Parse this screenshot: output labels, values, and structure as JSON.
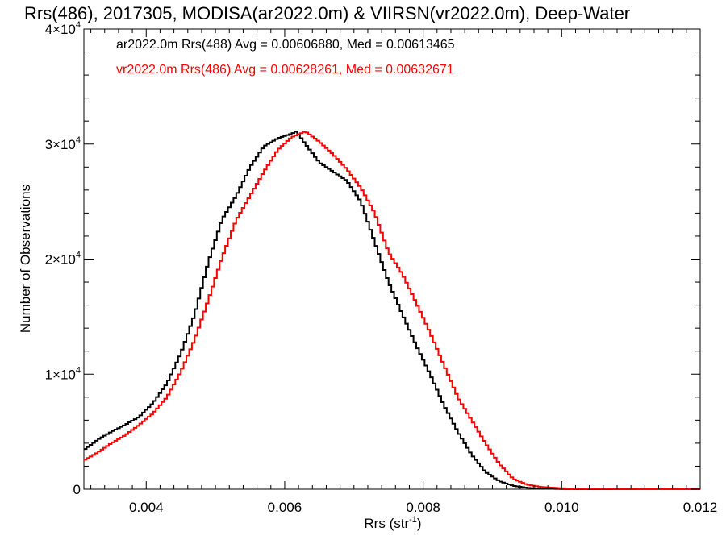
{
  "chart_data": {
    "type": "line",
    "title": "Rrs(486), 2017305, MODISA(ar2022.0m) & VIIRSN(vr2022.0m), Deep-Water",
    "xlabel_main": "Rrs (str",
    "xlabel_sup": "-1",
    "xlabel_end": ")",
    "ylabel": "Number of Observations",
    "xlim": [
      0.0031,
      0.012
    ],
    "ylim": [
      0,
      40000
    ],
    "x_ticks": [
      {
        "value": 0.004,
        "label": "0.004"
      },
      {
        "value": 0.006,
        "label": "0.006"
      },
      {
        "value": 0.008,
        "label": "0.008"
      },
      {
        "value": 0.01,
        "label": "0.010"
      },
      {
        "value": 0.012,
        "label": "0.012"
      }
    ],
    "y_ticks": [
      {
        "value": 0,
        "mant": "0",
        "exp": ""
      },
      {
        "value": 10000,
        "mant": "1×10",
        "exp": "4"
      },
      {
        "value": 20000,
        "mant": "2×10",
        "exp": "4"
      },
      {
        "value": 30000,
        "mant": "3×10",
        "exp": "4"
      },
      {
        "value": 40000,
        "mant": "4×10",
        "exp": "4"
      }
    ],
    "grid": false,
    "legend_position": "top-left",
    "series": [
      {
        "name": "ar2022.0m Rrs(488) Avg = 0.00606880, Med = 0.00613465",
        "color": "#000000",
        "step": true,
        "points": [
          [
            0.0031,
            3400
          ],
          [
            0.0033,
            4300
          ],
          [
            0.0035,
            5000
          ],
          [
            0.0037,
            5600
          ],
          [
            0.0039,
            6300
          ],
          [
            0.0041,
            7500
          ],
          [
            0.0043,
            9200
          ],
          [
            0.0045,
            11800
          ],
          [
            0.0047,
            15200
          ],
          [
            0.0049,
            19800
          ],
          [
            0.0051,
            23500
          ],
          [
            0.0053,
            25500
          ],
          [
            0.0055,
            28000
          ],
          [
            0.0057,
            29800
          ],
          [
            0.0059,
            30500
          ],
          [
            0.0061,
            30900
          ],
          [
            0.00617,
            31100
          ],
          [
            0.0063,
            30000
          ],
          [
            0.0065,
            28400
          ],
          [
            0.0067,
            27600
          ],
          [
            0.0069,
            26800
          ],
          [
            0.0071,
            25000
          ],
          [
            0.0073,
            21500
          ],
          [
            0.0075,
            18000
          ],
          [
            0.0077,
            15200
          ],
          [
            0.0079,
            12500
          ],
          [
            0.0081,
            10000
          ],
          [
            0.0083,
            7300
          ],
          [
            0.0085,
            5000
          ],
          [
            0.0087,
            3000
          ],
          [
            0.0089,
            1500
          ],
          [
            0.0091,
            700
          ],
          [
            0.0093,
            300
          ],
          [
            0.0095,
            120
          ],
          [
            0.0097,
            50
          ],
          [
            0.01,
            20
          ],
          [
            0.0105,
            0
          ],
          [
            0.012,
            0
          ]
        ]
      },
      {
        "name": "vr2022.0m Rrs(486) Avg = 0.00628261, Med = 0.00632671",
        "color": "#ff0000",
        "step": true,
        "points": [
          [
            0.0031,
            2500
          ],
          [
            0.0033,
            3200
          ],
          [
            0.0035,
            4000
          ],
          [
            0.0037,
            4700
          ],
          [
            0.0039,
            5600
          ],
          [
            0.0041,
            6600
          ],
          [
            0.0043,
            8000
          ],
          [
            0.0045,
            10200
          ],
          [
            0.0047,
            13000
          ],
          [
            0.0049,
            16500
          ],
          [
            0.0051,
            20200
          ],
          [
            0.0053,
            23400
          ],
          [
            0.0055,
            25500
          ],
          [
            0.0057,
            27600
          ],
          [
            0.0059,
            29500
          ],
          [
            0.0061,
            30600
          ],
          [
            0.0063,
            31100
          ],
          [
            0.0065,
            30200
          ],
          [
            0.0067,
            29100
          ],
          [
            0.0069,
            27800
          ],
          [
            0.0071,
            26200
          ],
          [
            0.0073,
            24000
          ],
          [
            0.0075,
            20600
          ],
          [
            0.0077,
            18700
          ],
          [
            0.0079,
            16200
          ],
          [
            0.0081,
            13600
          ],
          [
            0.0083,
            10800
          ],
          [
            0.0085,
            8000
          ],
          [
            0.0087,
            6000
          ],
          [
            0.0089,
            4000
          ],
          [
            0.0091,
            2200
          ],
          [
            0.0093,
            900
          ],
          [
            0.0095,
            400
          ],
          [
            0.0097,
            200
          ],
          [
            0.01,
            80
          ],
          [
            0.0105,
            20
          ],
          [
            0.011,
            5
          ],
          [
            0.012,
            0
          ]
        ]
      }
    ]
  }
}
